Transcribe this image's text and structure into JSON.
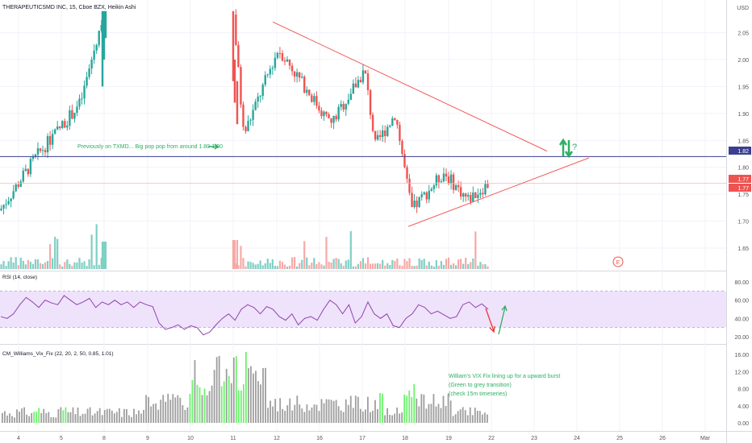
{
  "header": {
    "symbol_line": "THERAPEUTICSMD INC, 15, Cboe BZX, Heikin Ashi",
    "currency": "USD"
  },
  "colors": {
    "up": "#26a69a",
    "down": "#ef5350",
    "volume_up": "#7fcfc4",
    "volume_down": "#f7a9a7",
    "trendline": "#f25a5a",
    "horizontal_line": "#3c3f8f",
    "rsi_line": "#8e44ad",
    "rsi_band": "#efe2fb",
    "vix_green": "#6df26d",
    "vix_gray": "#9e9e9e",
    "annotation": "#2eaf63"
  },
  "annotations": {
    "txmd_note": "Previously on TXMD... Big pop pop from around 1.80-1.90",
    "vix_note_line1": "William's VIX Fix lining up for a upward burst",
    "vix_note_line2": "(Green to grey transition)",
    "vix_note_line3": "(check 15m timeseries)",
    "question": "?",
    "earnings": "E"
  },
  "price_labels": {
    "horizontal_level": "1.82",
    "last_a": "1.77",
    "last_b": "1.77"
  },
  "rsi": {
    "label": "RSI (14, close)"
  },
  "vix": {
    "label": "CM_Williams_Vix_Fix (22, 20, 2, 50, 0.85, 1.01)"
  },
  "chart_data": [
    {
      "type": "candlestick",
      "x_dates": [
        "4",
        "5",
        "8",
        "9",
        "10",
        "11",
        "12",
        "16",
        "17",
        "18",
        "19",
        "22",
        "23",
        "24",
        "25",
        "26",
        "Mar"
      ],
      "ylim": [
        1.62,
        2.09
      ],
      "y_ticks": [
        "2.05",
        "2.00",
        "1.95",
        "1.90",
        "1.85",
        "1.80",
        "1.75",
        "1.70",
        "1.65"
      ],
      "key_points": [
        {
          "date": "4",
          "close": 1.72
        },
        {
          "date": "5",
          "close": 1.82
        },
        {
          "date": "8",
          "close": 1.92
        },
        {
          "date": "8",
          "close": 2.09
        },
        {
          "date": "11",
          "close": 2.09
        },
        {
          "date": "11",
          "close": 1.86
        },
        {
          "date": "12",
          "close": 2.02
        },
        {
          "date": "16",
          "close": 1.88
        },
        {
          "date": "17",
          "close": 1.98
        },
        {
          "date": "17",
          "close": 1.84
        },
        {
          "date": "18",
          "close": 1.9
        },
        {
          "date": "18",
          "close": 1.72
        },
        {
          "date": "19",
          "close": 1.79
        },
        {
          "date": "19",
          "close": 1.74
        },
        {
          "date": "22",
          "close": 1.77
        }
      ],
      "horizontal_line": 1.82,
      "triangle": {
        "upper_start": 2.07,
        "upper_end": 1.83,
        "lower_start": 1.69,
        "lower_end": 1.81
      }
    },
    {
      "type": "line",
      "name": "RSI",
      "ylim": [
        20,
        80
      ],
      "y_ticks": [
        "80.00",
        "60.00",
        "40.00",
        "20.00"
      ],
      "band": [
        30,
        70
      ],
      "values": [
        42,
        40,
        45,
        55,
        63,
        58,
        52,
        60,
        57,
        55,
        65,
        60,
        55,
        58,
        62,
        52,
        58,
        55,
        60,
        55,
        58,
        52,
        58,
        55,
        53,
        35,
        28,
        30,
        33,
        28,
        32,
        30,
        22,
        25,
        33,
        40,
        45,
        38,
        50,
        55,
        52,
        45,
        53,
        50,
        42,
        38,
        45,
        33,
        40,
        42,
        38,
        50,
        60,
        55,
        45,
        55,
        35,
        42,
        58,
        45,
        40,
        45,
        32,
        30,
        40,
        45,
        55,
        52,
        45,
        48,
        44,
        40,
        42,
        55,
        58,
        52,
        56,
        50
      ]
    },
    {
      "type": "bar",
      "name": "Williams VIX Fix",
      "ylim": [
        0,
        16
      ],
      "y_ticks": [
        "16.00",
        "12.00",
        "8.00",
        "4.00",
        "0.00"
      ]
    }
  ]
}
